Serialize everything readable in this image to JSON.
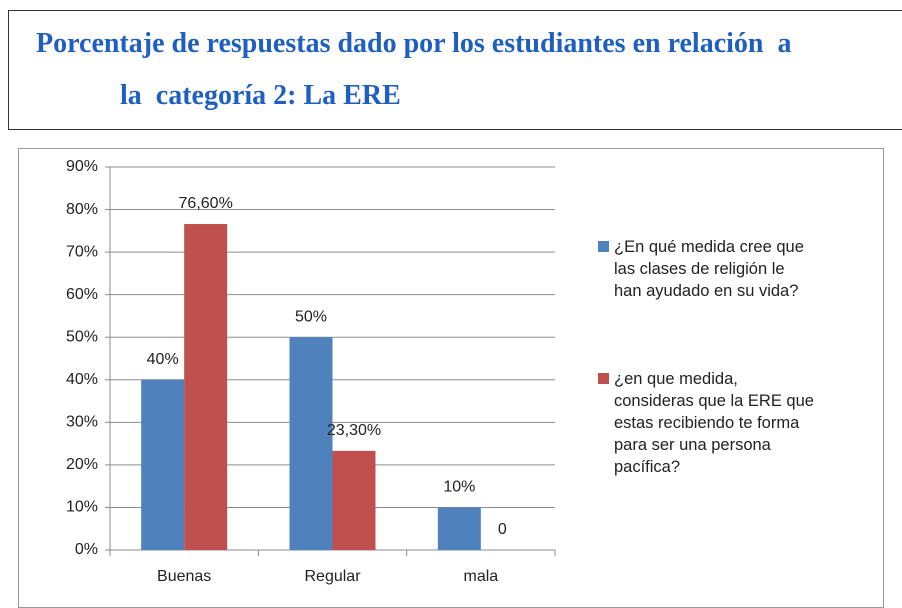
{
  "chart_data": {
    "type": "bar",
    "title": [
      "Porcentaje de respuestas dado por los estudiantes en relación  a",
      "la  categoría 2: La ERE"
    ],
    "categories": [
      "Buenas",
      "Regular",
      "mala"
    ],
    "series": [
      {
        "name": "¿En qué medida cree que\nlas clases de religión  le\nhan ayudado  en su vida?",
        "color": "#4f81bd",
        "values": [
          40,
          50,
          10
        ],
        "value_labels": [
          "40%",
          "50%",
          "10%"
        ]
      },
      {
        "name": "¿en que medida,\nconsideras que la ERE que\nestas recibiendo  te forma\npara ser una  persona\npacífica?",
        "color": "#c0504d",
        "values": [
          76.6,
          23.3,
          0
        ],
        "value_labels": [
          "76,60%",
          "23,30%",
          "0"
        ]
      }
    ],
    "ylim": [
      0,
      90
    ],
    "yticks": [
      {
        "value": 0,
        "label": "0%"
      },
      {
        "value": 10,
        "label": "10%"
      },
      {
        "value": 20,
        "label": "20%"
      },
      {
        "value": 30,
        "label": "30%"
      },
      {
        "value": 40,
        "label": "40%"
      },
      {
        "value": 50,
        "label": "50%"
      },
      {
        "value": 60,
        "label": "60%"
      },
      {
        "value": 70,
        "label": "70%"
      },
      {
        "value": 80,
        "label": "80%"
      },
      {
        "value": 90,
        "label": "90%"
      }
    ],
    "grid": true,
    "legend": "right"
  }
}
